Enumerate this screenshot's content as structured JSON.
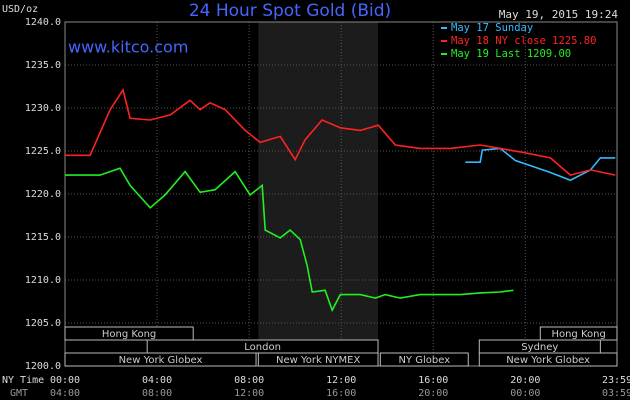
{
  "chart_data": {
    "type": "line",
    "title": "24 Hour Spot Gold (Bid)",
    "y_unit": "USD/oz",
    "timestamp": "May 19, 2015 19:24",
    "source": "www.kitco.com",
    "x_axis_label": "NY Time",
    "x2_axis_label": "GMT",
    "xlim": [
      0,
      23.983
    ],
    "xticks": [
      {
        "value": 0,
        "label": "00:00"
      },
      {
        "value": 4,
        "label": "04:00"
      },
      {
        "value": 8,
        "label": "08:00"
      },
      {
        "value": 12,
        "label": "12:00"
      },
      {
        "value": 16,
        "label": "16:00"
      },
      {
        "value": 20,
        "label": "20:00"
      },
      {
        "value": 23.983,
        "label": "23:59"
      }
    ],
    "x2ticks": [
      {
        "value": 0,
        "label": "04:00"
      },
      {
        "value": 4,
        "label": "08:00"
      },
      {
        "value": 8,
        "label": "12:00"
      },
      {
        "value": 12,
        "label": "16:00"
      },
      {
        "value": 16,
        "label": "20:00"
      },
      {
        "value": 20,
        "label": "00:00"
      },
      {
        "value": 23.983,
        "label": "03:59"
      }
    ],
    "ylim": [
      1200,
      1240
    ],
    "yticks": [
      {
        "value": 1200,
        "label": "1200.0"
      },
      {
        "value": 1205,
        "label": "1205.0"
      },
      {
        "value": 1210,
        "label": "1210.0"
      },
      {
        "value": 1215,
        "label": "1215.0"
      },
      {
        "value": 1220,
        "label": "1220.0"
      },
      {
        "value": 1225,
        "label": "1225.0"
      },
      {
        "value": 1230,
        "label": "1230.0"
      },
      {
        "value": 1235,
        "label": "1235.0"
      },
      {
        "value": 1240,
        "label": "1240.0"
      }
    ],
    "grid": true,
    "shaded_span": [
      8.4,
      13.6
    ],
    "sessions": [
      {
        "name": "Hong Kong",
        "start": 0,
        "end": 5.57,
        "row": 0
      },
      {
        "name": "Hong Kong",
        "start": 20.65,
        "end": 23.983,
        "row": 0
      },
      {
        "name": "London",
        "start": 3.57,
        "end": 13.6,
        "row": 1
      },
      {
        "name": "Sydney",
        "start": 18,
        "end": 23.26,
        "row": 1
      },
      {
        "name": "New York Globex",
        "start": 0,
        "end": 8.3,
        "row": 2
      },
      {
        "name": "New York NYMEX",
        "start": 8.4,
        "end": 13.6,
        "row": 2
      },
      {
        "name": "NY Globex",
        "start": 13.7,
        "end": 17.52,
        "row": 2
      },
      {
        "name": "New York Globex",
        "start": 18,
        "end": 23.983,
        "row": 2
      }
    ],
    "series": [
      {
        "name": "May 17 Sunday",
        "color": "#33bbff",
        "x": [
          17.39,
          18.04,
          18.13,
          18.91,
          19.57,
          20.22,
          21.09,
          21.96,
          22.83,
          23.26,
          23.91
        ],
        "values": [
          1223.7,
          1223.7,
          1225.1,
          1225.3,
          1223.9,
          1223.3,
          1222.5,
          1221.6,
          1222.8,
          1224.2,
          1224.2
        ]
      },
      {
        "name": "May 18 NY close 1225.80",
        "color": "#ff2222",
        "x": [
          0,
          1.09,
          1.96,
          2.52,
          2.83,
          3.7,
          4.57,
          5.43,
          5.87,
          6.3,
          6.96,
          7.83,
          8.48,
          9.35,
          10.0,
          10.43,
          11.17,
          11.96,
          12.83,
          13.61,
          14.35,
          15.43,
          16.74,
          18.04,
          18.91,
          19.78,
          21.09,
          21.96,
          22.83,
          23.91
        ],
        "values": [
          1224.5,
          1224.5,
          1229.8,
          1232.1,
          1228.8,
          1228.6,
          1229.2,
          1230.9,
          1229.8,
          1230.6,
          1229.8,
          1227.4,
          1226.0,
          1226.7,
          1224.0,
          1226.3,
          1228.6,
          1227.7,
          1227.4,
          1228.0,
          1225.7,
          1225.3,
          1225.3,
          1225.7,
          1225.3,
          1224.9,
          1224.2,
          1222.2,
          1222.8,
          1222.2
        ]
      },
      {
        "name": "May 19 Last 1209.00",
        "color": "#22ee22",
        "x": [
          0,
          1.52,
          2.39,
          2.83,
          3.7,
          4.35,
          5.22,
          5.87,
          6.52,
          7.39,
          8.04,
          8.57,
          8.7,
          9.35,
          9.78,
          10.22,
          10.52,
          10.74,
          11.3,
          11.61,
          11.96,
          12.83,
          13.48,
          13.91,
          14.57,
          15.43,
          16.3,
          17.17,
          18.04,
          18.91,
          19.48
        ],
        "values": [
          1222.2,
          1222.2,
          1223.0,
          1221.0,
          1218.4,
          1219.9,
          1222.6,
          1220.2,
          1220.5,
          1222.6,
          1219.9,
          1221.0,
          1215.8,
          1214.9,
          1215.8,
          1214.7,
          1211.7,
          1208.6,
          1208.8,
          1206.5,
          1208.3,
          1208.3,
          1207.9,
          1208.3,
          1207.9,
          1208.3,
          1208.3,
          1208.3,
          1208.5,
          1208.6,
          1208.8
        ]
      }
    ]
  }
}
